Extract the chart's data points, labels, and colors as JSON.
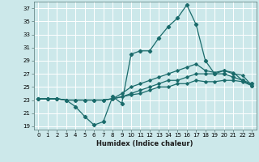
{
  "xlabel": "Humidex (Indice chaleur)",
  "background_color": "#cce8ea",
  "grid_color": "#ffffff",
  "line_color": "#1a6b6b",
  "xlim": [
    -0.5,
    23.5
  ],
  "ylim": [
    18.5,
    38.0
  ],
  "yticks": [
    19,
    21,
    23,
    25,
    27,
    29,
    31,
    33,
    35,
    37
  ],
  "xticks": [
    0,
    1,
    2,
    3,
    4,
    5,
    6,
    7,
    8,
    9,
    10,
    11,
    12,
    13,
    14,
    15,
    16,
    17,
    18,
    19,
    20,
    21,
    22,
    23
  ],
  "curve1_x": [
    0,
    1,
    2,
    3,
    4,
    5,
    6,
    7,
    8,
    9,
    10,
    11,
    12,
    13,
    14,
    15,
    16,
    17,
    18,
    19,
    20,
    21,
    22,
    23
  ],
  "curve1_y": [
    23.2,
    23.2,
    23.2,
    23.0,
    22.0,
    20.5,
    19.2,
    19.7,
    23.5,
    22.5,
    30.0,
    30.5,
    30.5,
    32.5,
    34.2,
    35.5,
    37.5,
    34.5,
    29.0,
    27.0,
    27.0,
    26.5,
    26.0,
    25.5
  ],
  "curve2_x": [
    0,
    1,
    2,
    3,
    4,
    5,
    6,
    7,
    8,
    9,
    10,
    11,
    12,
    13,
    14,
    15,
    16,
    17,
    18,
    19,
    20,
    21,
    22,
    23
  ],
  "curve2_y": [
    23.2,
    23.2,
    23.2,
    23.0,
    23.0,
    23.0,
    23.0,
    23.0,
    23.2,
    24.0,
    25.0,
    25.5,
    26.0,
    26.5,
    27.0,
    27.5,
    28.0,
    28.5,
    27.5,
    27.2,
    27.5,
    27.0,
    26.8,
    25.2
  ],
  "curve3_x": [
    0,
    1,
    2,
    3,
    4,
    5,
    6,
    7,
    8,
    9,
    10,
    11,
    12,
    13,
    14,
    15,
    16,
    17,
    18,
    19,
    20,
    21,
    22,
    23
  ],
  "curve3_y": [
    23.2,
    23.2,
    23.2,
    23.0,
    23.0,
    23.0,
    23.0,
    23.0,
    23.2,
    23.5,
    24.0,
    24.5,
    25.0,
    25.5,
    26.0,
    26.0,
    26.5,
    27.0,
    27.0,
    27.0,
    27.5,
    27.2,
    26.0,
    25.2
  ],
  "curve4_x": [
    0,
    1,
    2,
    3,
    4,
    5,
    6,
    7,
    8,
    9,
    10,
    11,
    12,
    13,
    14,
    15,
    16,
    17,
    18,
    19,
    20,
    21,
    22,
    23
  ],
  "curve4_y": [
    23.2,
    23.2,
    23.2,
    23.0,
    23.0,
    23.0,
    23.0,
    23.0,
    23.2,
    23.5,
    23.8,
    24.0,
    24.5,
    25.0,
    25.0,
    25.5,
    25.5,
    26.0,
    25.8,
    25.8,
    26.0,
    26.0,
    25.8,
    25.2
  ]
}
